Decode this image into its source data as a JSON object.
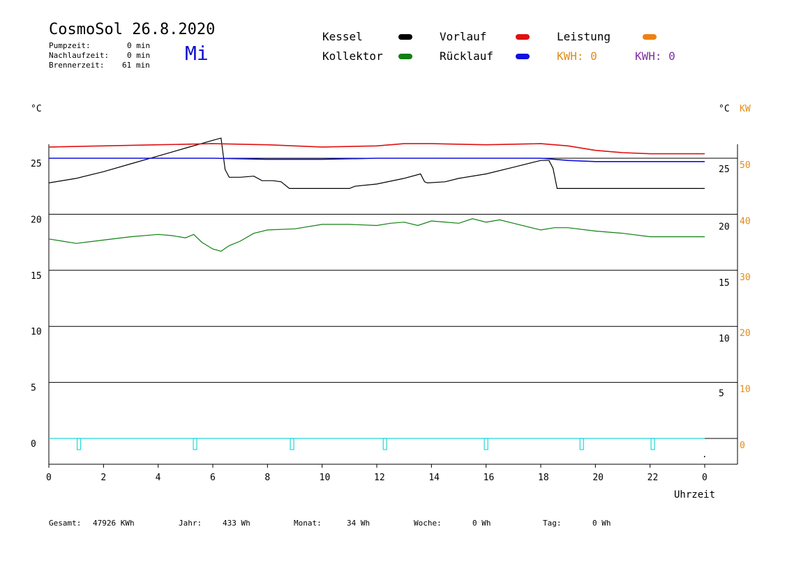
{
  "header": {
    "title": "CosmoSol 26.8.2020",
    "weekday": "Mi",
    "stats": [
      {
        "label": "Pumpzeit:",
        "value": "0 min"
      },
      {
        "label": "Nachlaufzeit:",
        "value": "0 min"
      },
      {
        "label": "Brennerzeit:",
        "value": "61 min"
      }
    ]
  },
  "legend": {
    "items": [
      {
        "name": "Kessel",
        "color": "#000000"
      },
      {
        "name": "Vorlauf",
        "color": "#e01010"
      },
      {
        "name": "Leistung",
        "color": "#f08010"
      },
      {
        "name": "Kollektor",
        "color": "#108010"
      },
      {
        "name": "Rücklauf",
        "color": "#1010e0"
      }
    ],
    "kwh1": {
      "label": "KWH: 0",
      "color": "#e08c1c"
    },
    "kwh2": {
      "label": "KWH: 0",
      "color": "#8030a0"
    }
  },
  "footer": {
    "gesamt_label": "Gesamt:",
    "gesamt_value": "47926 KWh",
    "jahr_label": "Jahr:",
    "jahr_value": "433 Wh",
    "monat_label": "Monat:",
    "monat_value": "34 Wh",
    "woche_label": "Woche:",
    "woche_value": "0 Wh",
    "tag_label": "Tag:",
    "tag_value": "0 Wh"
  },
  "chart_data": {
    "type": "line",
    "xlabel": "Uhrzeit",
    "x_tick_labels": [
      "0",
      "2",
      "4",
      "6",
      "8",
      "10",
      "12",
      "14",
      "16",
      "18",
      "20",
      "22",
      "0"
    ],
    "xlim": [
      0,
      24
    ],
    "ylabel_left": "°C",
    "ylabel_right": "°C",
    "ylabel_right2": "KW",
    "ylim": [
      -1.5,
      27.5
    ],
    "y_ticks_left": [
      "0",
      "5",
      "10",
      "15",
      "20",
      "25"
    ],
    "y_ticks_right": [
      "5",
      "10",
      "15",
      "20",
      "25"
    ],
    "y_ticks_right_kw": [
      "0",
      "10",
      "20",
      "30",
      "40",
      "50"
    ],
    "grid": true,
    "series": [
      {
        "name": "Kessel",
        "color": "#000000",
        "x": [
          0,
          1,
          2,
          3,
          4,
          5,
          6,
          6.3,
          6.45,
          6.6,
          7,
          7.5,
          7.8,
          8.2,
          8.5,
          8.8,
          9,
          10,
          11,
          11.2,
          12,
          13,
          13.6,
          13.75,
          13.85,
          14.5,
          15,
          16,
          17,
          18,
          18.3,
          18.45,
          18.6,
          19,
          20,
          22,
          24
        ],
        "y": [
          22.8,
          23.2,
          23.8,
          24.5,
          25.2,
          25.9,
          26.6,
          26.8,
          24,
          23.3,
          23.3,
          23.4,
          23.0,
          23.0,
          22.9,
          22.3,
          22.3,
          22.3,
          22.3,
          22.5,
          22.7,
          23.2,
          23.6,
          22.9,
          22.8,
          22.9,
          23.2,
          23.6,
          24.2,
          24.8,
          24.8,
          24.1,
          22.3,
          22.3,
          22.3,
          22.3,
          22.3
        ]
      },
      {
        "name": "Vorlauf",
        "color": "#e01010",
        "x": [
          0,
          2,
          4,
          6,
          8,
          10,
          12,
          13,
          14,
          16,
          18,
          19,
          20,
          21,
          22,
          24
        ],
        "y": [
          26.0,
          26.1,
          26.2,
          26.3,
          26.2,
          26.0,
          26.1,
          26.3,
          26.3,
          26.2,
          26.3,
          26.1,
          25.7,
          25.5,
          25.4,
          25.4
        ]
      },
      {
        "name": "Rücklauf",
        "color": "#1010e0",
        "x": [
          0,
          2,
          4,
          6,
          8,
          10,
          12,
          14,
          16,
          18,
          19,
          20,
          22,
          24
        ],
        "y": [
          25.0,
          25.0,
          25.0,
          25.0,
          24.9,
          24.9,
          25.0,
          25.0,
          25.0,
          25.0,
          24.8,
          24.7,
          24.7,
          24.7
        ]
      },
      {
        "name": "Kollektor",
        "color": "#108010",
        "x": [
          0,
          0.5,
          1,
          2,
          3,
          4,
          4.5,
          5,
          5.3,
          5.6,
          6,
          6.3,
          6.6,
          7,
          7.5,
          8,
          9,
          10,
          11,
          12,
          12.5,
          13,
          13.5,
          14,
          15,
          15.5,
          16,
          16.5,
          17,
          18,
          18.5,
          19,
          20,
          21,
          22,
          23,
          24
        ],
        "y": [
          17.8,
          17.6,
          17.4,
          17.7,
          18.0,
          18.2,
          18.1,
          17.9,
          18.2,
          17.5,
          16.9,
          16.7,
          17.2,
          17.6,
          18.3,
          18.6,
          18.7,
          19.1,
          19.1,
          19.0,
          19.2,
          19.3,
          19.0,
          19.4,
          19.2,
          19.6,
          19.3,
          19.5,
          19.2,
          18.6,
          18.8,
          18.8,
          18.5,
          18.3,
          18.0,
          18.0,
          18.0
        ]
      },
      {
        "name": "Leistung",
        "color": "#20d8d8",
        "x": [
          0,
          24
        ],
        "y": [
          0,
          0
        ]
      }
    ],
    "markers_x": [
      1.1,
      5.35,
      8.9,
      12.3,
      16.0,
      19.5,
      22.1
    ]
  }
}
